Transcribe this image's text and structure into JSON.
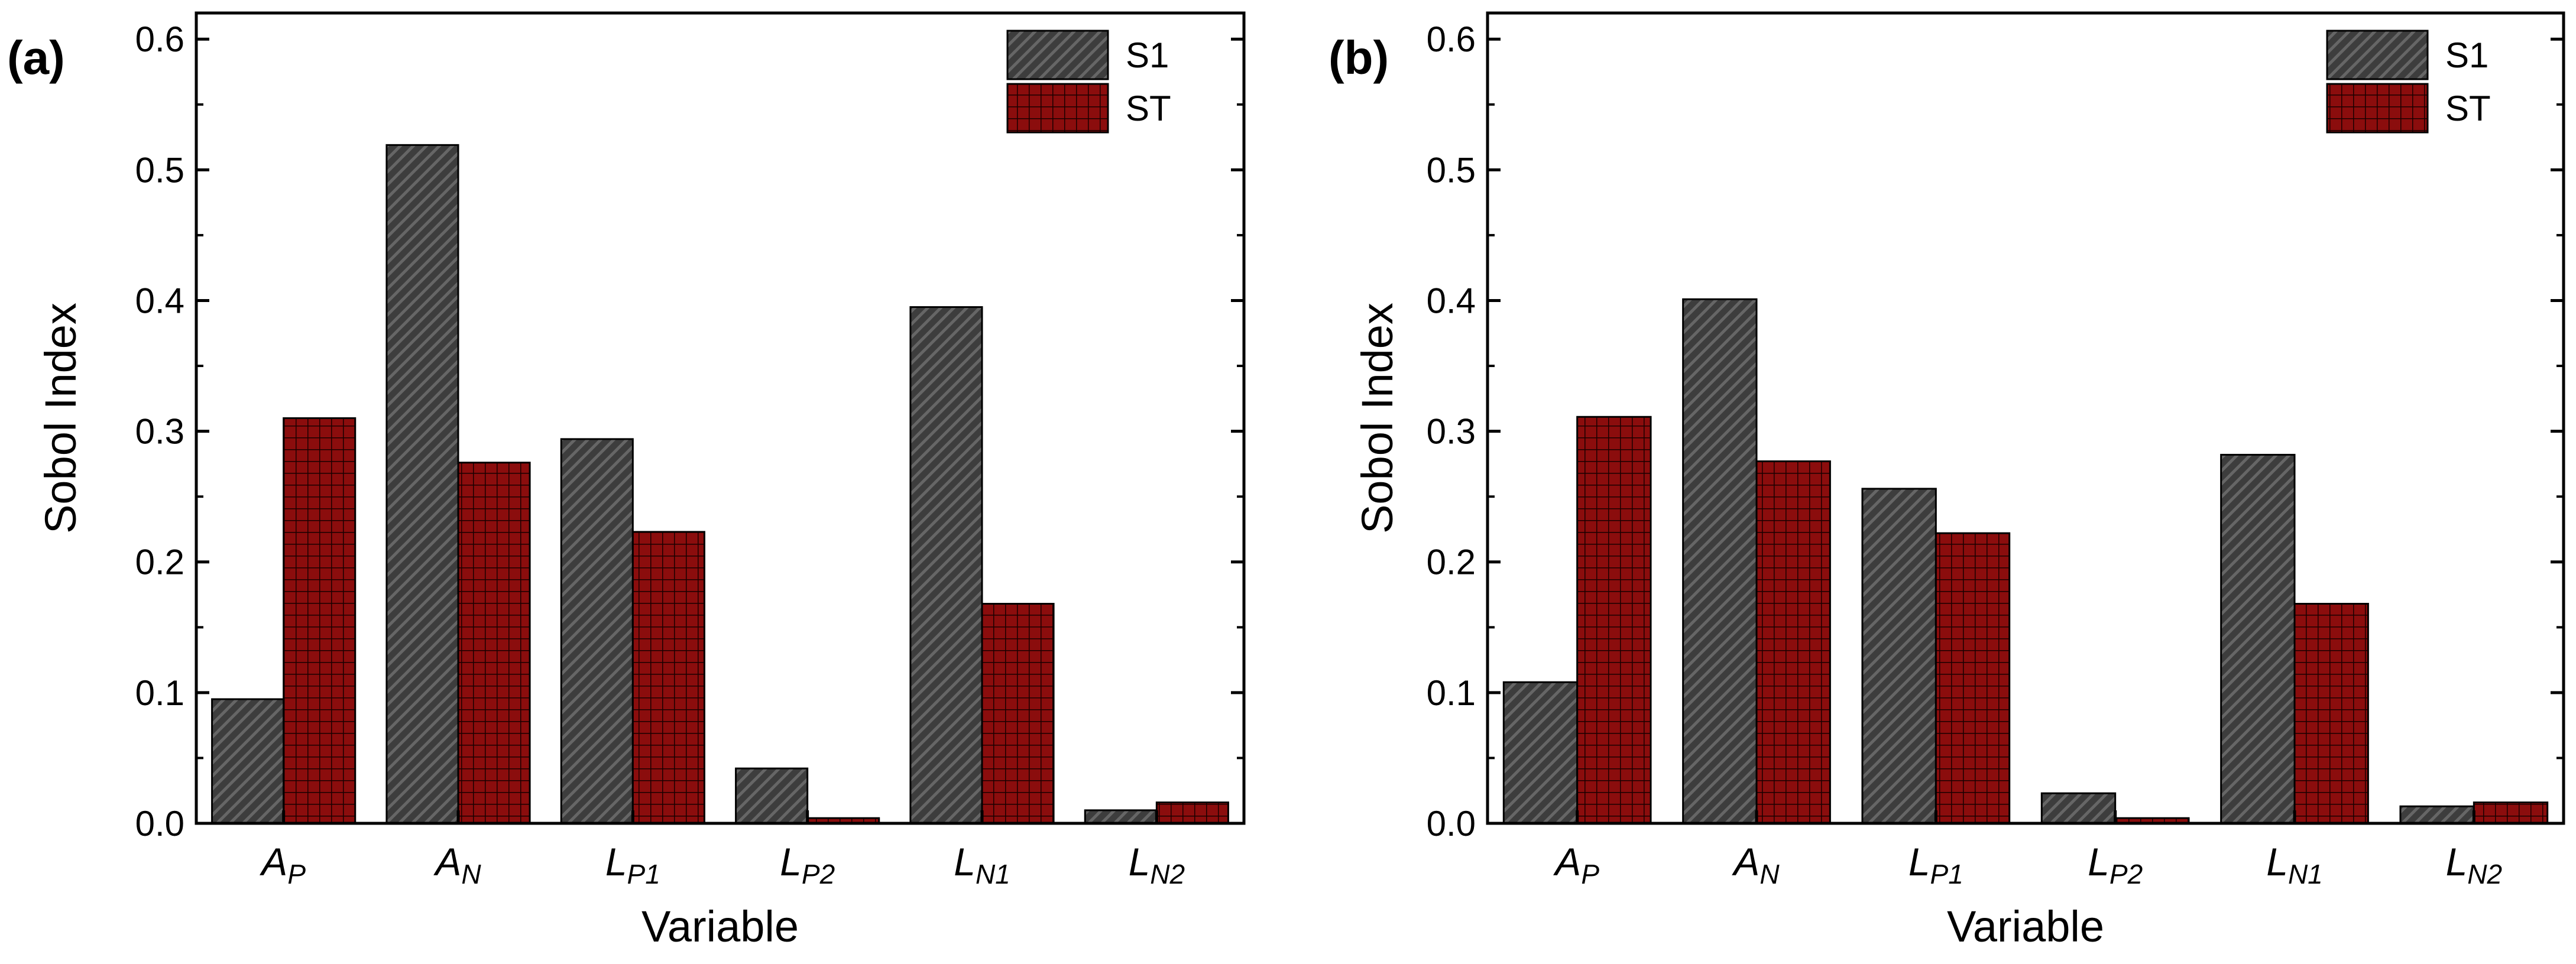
{
  "colors": {
    "s1_fill": "#3d3d3d",
    "s1_hatch": "#666666",
    "st_fill": "#8b0d0d",
    "st_grid": "#1a0000",
    "axis": "#000000"
  },
  "chart_data": [
    {
      "type": "bar",
      "panel_label": "(a)",
      "xlabel": "Variable",
      "ylabel": "Sobol Index",
      "ylim": [
        0,
        0.62
      ],
      "yticks": [
        "0.0",
        "0.1",
        "0.2",
        "0.3",
        "0.4",
        "0.5",
        "0.6"
      ],
      "legend_position": "top-right",
      "categories": [
        {
          "main": "A",
          "sub": "P"
        },
        {
          "main": "A",
          "sub": "N"
        },
        {
          "main": "L",
          "sub": "P1"
        },
        {
          "main": "L",
          "sub": "P2"
        },
        {
          "main": "L",
          "sub": "N1"
        },
        {
          "main": "L",
          "sub": "N2"
        }
      ],
      "series": [
        {
          "name": "S1",
          "values": [
            0.095,
            0.519,
            0.294,
            0.042,
            0.395,
            0.01
          ]
        },
        {
          "name": "ST",
          "values": [
            0.31,
            0.276,
            0.223,
            0.004,
            0.168,
            0.016
          ]
        }
      ]
    },
    {
      "type": "bar",
      "panel_label": "(b)",
      "xlabel": "Variable",
      "ylabel": "Sobol Index",
      "ylim": [
        0,
        0.62
      ],
      "yticks": [
        "0.0",
        "0.1",
        "0.2",
        "0.3",
        "0.4",
        "0.5",
        "0.6"
      ],
      "legend_position": "top-right",
      "categories": [
        {
          "main": "A",
          "sub": "P"
        },
        {
          "main": "A",
          "sub": "N"
        },
        {
          "main": "L",
          "sub": "P1"
        },
        {
          "main": "L",
          "sub": "P2"
        },
        {
          "main": "L",
          "sub": "N1"
        },
        {
          "main": "L",
          "sub": "N2"
        }
      ],
      "series": [
        {
          "name": "S1",
          "values": [
            0.108,
            0.401,
            0.256,
            0.023,
            0.282,
            0.013
          ]
        },
        {
          "name": "ST",
          "values": [
            0.311,
            0.277,
            0.222,
            0.004,
            0.168,
            0.016
          ]
        }
      ]
    }
  ]
}
